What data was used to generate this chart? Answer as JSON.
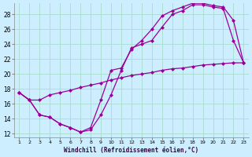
{
  "xlabel": "Windchill (Refroidissement éolien,°C)",
  "bg_color": "#cceeff",
  "line_color": "#990099",
  "grid_color": "#aaddcc",
  "xlim": [
    0.5,
    23.5
  ],
  "ylim": [
    11.5,
    29.5
  ],
  "xticks": [
    1,
    2,
    3,
    4,
    5,
    6,
    7,
    8,
    9,
    10,
    11,
    12,
    13,
    14,
    15,
    16,
    17,
    18,
    19,
    20,
    21,
    22,
    23
  ],
  "yticks": [
    12,
    14,
    16,
    18,
    20,
    22,
    24,
    26,
    28
  ],
  "line1_x": [
    1,
    2,
    3,
    4,
    5,
    6,
    7,
    8,
    9,
    10,
    11,
    12,
    13,
    14,
    15,
    16,
    17,
    18,
    19,
    20,
    21,
    22,
    23
  ],
  "line1_y": [
    17.5,
    16.5,
    14.5,
    14.2,
    13.3,
    12.8,
    12.2,
    12.5,
    14.5,
    17.2,
    20.5,
    23.5,
    24.0,
    24.5,
    26.3,
    28.0,
    28.5,
    29.3,
    29.3,
    29.0,
    28.8,
    24.5,
    21.5
  ],
  "line2_x": [
    1,
    2,
    3,
    4,
    5,
    6,
    7,
    8,
    9,
    10,
    11,
    12,
    13,
    14,
    15,
    16,
    17,
    18,
    19,
    20,
    21,
    22,
    23
  ],
  "line2_y": [
    17.5,
    16.5,
    14.5,
    14.2,
    13.3,
    12.8,
    12.2,
    12.8,
    16.5,
    20.5,
    20.8,
    23.3,
    24.5,
    26.0,
    27.8,
    28.5,
    29.0,
    29.5,
    29.5,
    29.2,
    29.0,
    27.2,
    21.5
  ],
  "line3_x": [
    1,
    2,
    3,
    4,
    5,
    6,
    7,
    8,
    9,
    10,
    11,
    12,
    13,
    14,
    15,
    16,
    17,
    18,
    19,
    20,
    21,
    22,
    23
  ],
  "line3_y": [
    17.5,
    16.5,
    16.5,
    17.2,
    17.5,
    17.8,
    18.2,
    18.5,
    18.8,
    19.2,
    19.5,
    19.8,
    20.0,
    20.2,
    20.5,
    20.7,
    20.8,
    21.0,
    21.2,
    21.3,
    21.4,
    21.5,
    21.5
  ]
}
